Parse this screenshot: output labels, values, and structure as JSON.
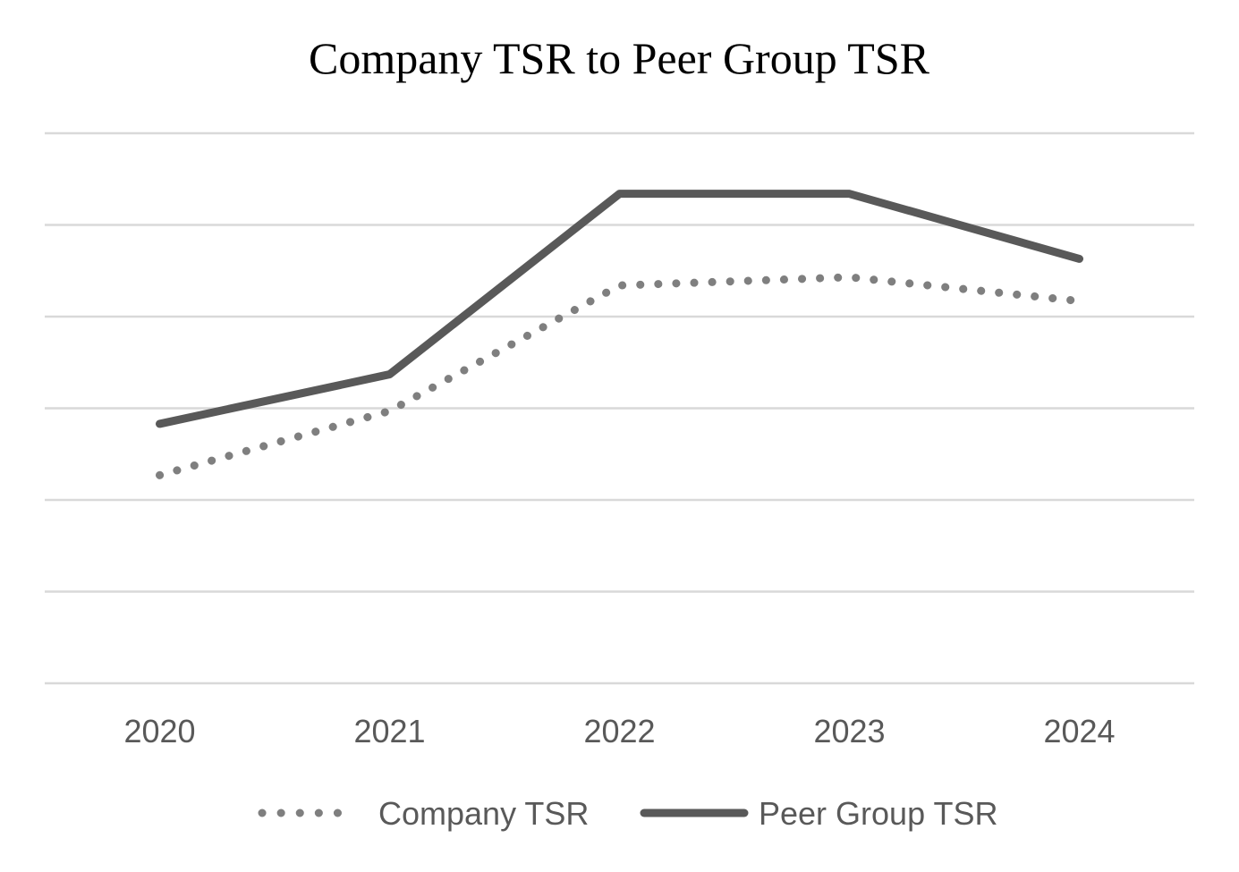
{
  "chart_data": {
    "type": "line",
    "title": "Company TSR to Peer Group TSR",
    "xlabel": "",
    "ylabel": "",
    "categories": [
      "2020",
      "2021",
      "2022",
      "2023",
      "2024"
    ],
    "ylim": [
      0,
      6
    ],
    "grid": true,
    "legend_position": "bottom",
    "series": [
      {
        "name": "Company TSR",
        "values": [
          2.27,
          2.97,
          4.34,
          4.43,
          4.17
        ],
        "style": "dotted",
        "color": "#7f7f7f"
      },
      {
        "name": "Peer Group TSR",
        "values": [
          2.83,
          3.37,
          5.34,
          5.34,
          4.63
        ],
        "style": "solid",
        "color": "#595959"
      }
    ],
    "colors": {
      "gridline": "#d9d9d9",
      "text": "#595959"
    }
  }
}
